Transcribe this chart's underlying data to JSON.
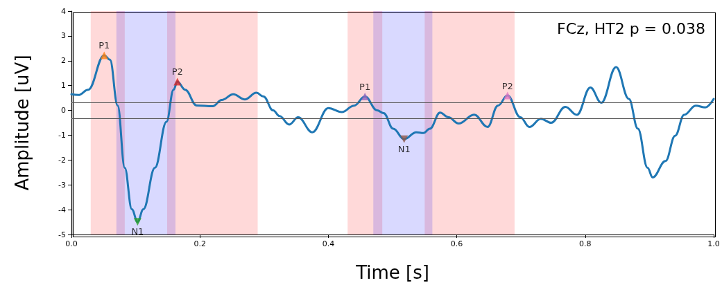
{
  "chart_data": {
    "type": "line",
    "xlabel": "Time [s]",
    "ylabel": "Amplitude [uV]",
    "annotations": [
      "FCz, HT2 p = 0.038"
    ],
    "xlim": [
      0,
      1
    ],
    "xticks": [
      {
        "value": 0,
        "label": "0.0"
      },
      {
        "value": 0.2,
        "label": "0.2"
      },
      {
        "value": 0.4,
        "label": "0.4"
      },
      {
        "value": 0.6,
        "label": "0.6"
      },
      {
        "value": 0.8,
        "label": "0.8"
      },
      {
        "value": 1,
        "label": "1.0"
      }
    ],
    "ylim": [
      -5,
      4
    ],
    "yticks": [
      -5,
      -4,
      -3,
      -2,
      -1,
      0,
      1,
      2,
      3,
      4
    ],
    "grid": false,
    "legend": false,
    "marker": "none",
    "line_style": "solid",
    "series": [
      {
        "color": "#1f77b4",
        "x": [
          0,
          0.011,
          0.026,
          0.051,
          0.06,
          0.072,
          0.083,
          0.094,
          0.103,
          0.112,
          0.13,
          0.148,
          0.159,
          0.165,
          0.177,
          0.195,
          0.22,
          0.234,
          0.252,
          0.27,
          0.288,
          0.299,
          0.314,
          0.324,
          0.339,
          0.353,
          0.375,
          0.4,
          0.421,
          0.44,
          0.457,
          0.476,
          0.486,
          0.501,
          0.518,
          0.537,
          0.548,
          0.558,
          0.574,
          0.587,
          0.603,
          0.627,
          0.648,
          0.664,
          0.679,
          0.699,
          0.713,
          0.731,
          0.747,
          0.769,
          0.787,
          0.808,
          0.825,
          0.848,
          0.868,
          0.882,
          0.897,
          0.905,
          0.925,
          0.94,
          0.954,
          0.972,
          0.987,
          1.0
        ],
        "values": [
          0.65,
          0.62,
          0.83,
          2.22,
          2.04,
          0.19,
          -2.31,
          -3.98,
          -4.49,
          -3.98,
          -2.31,
          -0.46,
          0.83,
          1.16,
          0.83,
          0.2,
          0.17,
          0.42,
          0.65,
          0.44,
          0.71,
          0.56,
          0,
          -0.23,
          -0.57,
          -0.28,
          -0.88,
          0.09,
          -0.07,
          0.19,
          0.56,
          0,
          -0.11,
          -0.74,
          -1.16,
          -0.88,
          -0.91,
          -0.74,
          -0.09,
          -0.28,
          -0.53,
          -0.17,
          -0.67,
          0.19,
          0.6,
          -0.28,
          -0.67,
          -0.34,
          -0.5,
          0.14,
          -0.18,
          0.92,
          0.31,
          1.74,
          0.46,
          -0.74,
          -2.31,
          -2.7,
          -2.04,
          -1.02,
          -0.18,
          0.19,
          0.12,
          0.46
        ]
      },
      {
        "type": "scatter",
        "name": "P1",
        "color": "#ff7f0e",
        "marker": "triangle",
        "x": [
          0.051
        ],
        "values": [
          2.22
        ]
      },
      {
        "type": "scatter",
        "name": "N1",
        "color": "#2ca02c",
        "marker": "triangle",
        "x": [
          0.103
        ],
        "values": [
          -4.49
        ]
      },
      {
        "type": "scatter",
        "name": "P2",
        "color": "#d62728",
        "marker": "triangle",
        "x": [
          0.165
        ],
        "values": [
          1.16
        ]
      },
      {
        "type": "scatter",
        "name": "P1",
        "color": "#9467bd",
        "marker": "triangle",
        "x": [
          0.457
        ],
        "values": [
          0.56
        ]
      },
      {
        "type": "scatter",
        "name": "N1",
        "color": "#8c564b",
        "marker": "triangle",
        "x": [
          0.518
        ],
        "values": [
          -1.16
        ]
      },
      {
        "type": "scatter",
        "name": "P2",
        "color": "#e377c2",
        "marker": "triangle",
        "x": [
          0.679
        ],
        "values": [
          0.6
        ]
      }
    ],
    "ref_lines": [
      {
        "axis": "y",
        "value": 0.32,
        "color": "#555555"
      },
      {
        "axis": "y",
        "value": -0.32,
        "color": "#555555"
      }
    ],
    "bands": [
      {
        "axis": "x",
        "from": 0.03,
        "to": 0.083,
        "color": "#ff0000"
      },
      {
        "axis": "x",
        "from": 0.149,
        "to": 0.29,
        "color": "#ff0000"
      },
      {
        "axis": "x",
        "from": 0.07,
        "to": 0.162,
        "color": "#0000ff"
      },
      {
        "axis": "x",
        "from": 0.43,
        "to": 0.484,
        "color": "#ff0000"
      },
      {
        "axis": "x",
        "from": 0.55,
        "to": 0.69,
        "color": "#ff0000"
      },
      {
        "axis": "x",
        "from": 0.47,
        "to": 0.562,
        "color": "#0000ff"
      }
    ]
  }
}
